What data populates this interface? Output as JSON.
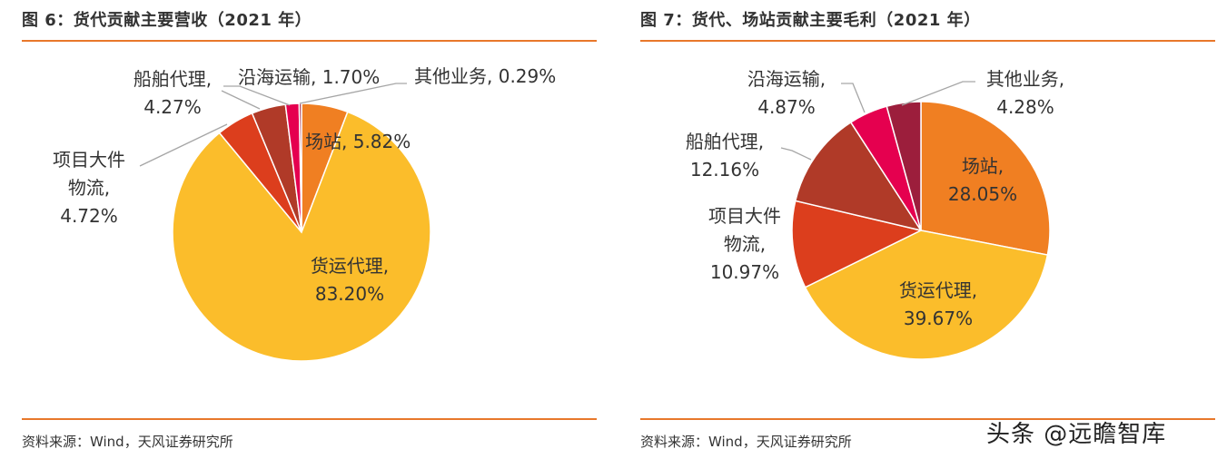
{
  "figures": [
    {
      "title": "图 6：货代贡献主要营收（2021 年）",
      "source": "资料来源：Wind，天风证券研究所"
    },
    {
      "title": "图 7：货代、场站贡献主要毛利（2021 年）",
      "source": "资料来源：Wind，天风证券研究所"
    }
  ],
  "watermark": "头条 @远瞻智库",
  "chart_data": [
    {
      "type": "pie",
      "title": "",
      "start": "12 o'clock",
      "direction": "clockwise",
      "slices": [
        {
          "label": "场站, 5.82%",
          "value": 5.82,
          "color": "#f07f22"
        },
        {
          "label": "货运代理, 83.20%",
          "value": 83.2,
          "color": "#fbbd2b"
        },
        {
          "label": "项目大件物流, 4.72%",
          "value": 4.72,
          "color": "#dc3e1d"
        },
        {
          "label": "船舶代理, 4.27%",
          "value": 4.27,
          "color": "#b03a28"
        },
        {
          "label": "沿海运输, 1.70%",
          "value": 1.7,
          "color": "#e5004f"
        },
        {
          "label": "其他业务, 0.29%",
          "value": 0.29,
          "color": "#9c1e3c"
        }
      ],
      "display_labels": [
        {
          "lines": [
            "场站, 5.82%"
          ]
        },
        {
          "lines": [
            "货运代理,",
            "83.20%"
          ]
        },
        {
          "lines": [
            "项目大件",
            "物流,",
            "4.72%"
          ]
        },
        {
          "lines": [
            "船舶代理,",
            "4.27%"
          ]
        },
        {
          "lines": [
            "沿海运输, 1.70%"
          ]
        },
        {
          "lines": [
            "其他业务, 0.29%"
          ]
        }
      ]
    },
    {
      "type": "pie",
      "title": "",
      "start": "12 o'clock",
      "direction": "clockwise",
      "slices": [
        {
          "label": "场站, 28.05%",
          "value": 28.05,
          "color": "#f07f22"
        },
        {
          "label": "货运代理, 39.67%",
          "value": 39.67,
          "color": "#fbbd2b"
        },
        {
          "label": "项目大件物流, 10.97%",
          "value": 10.97,
          "color": "#dc3e1d"
        },
        {
          "label": "船舶代理, 12.16%",
          "value": 12.16,
          "color": "#b03a28"
        },
        {
          "label": "沿海运输, 4.87%",
          "value": 4.87,
          "color": "#e5004f"
        },
        {
          "label": "其他业务, 4.28%",
          "value": 4.28,
          "color": "#9c1e3c"
        }
      ],
      "display_labels": [
        {
          "lines": [
            "场站,",
            "28.05%"
          ]
        },
        {
          "lines": [
            "货运代理,",
            "39.67%"
          ]
        },
        {
          "lines": [
            "项目大件",
            "物流,",
            "10.97%"
          ]
        },
        {
          "lines": [
            "船舶代理,",
            "12.16%"
          ]
        },
        {
          "lines": [
            "沿海运输,",
            "4.87%"
          ]
        },
        {
          "lines": [
            "其他业务,",
            "4.28%"
          ]
        }
      ]
    }
  ]
}
